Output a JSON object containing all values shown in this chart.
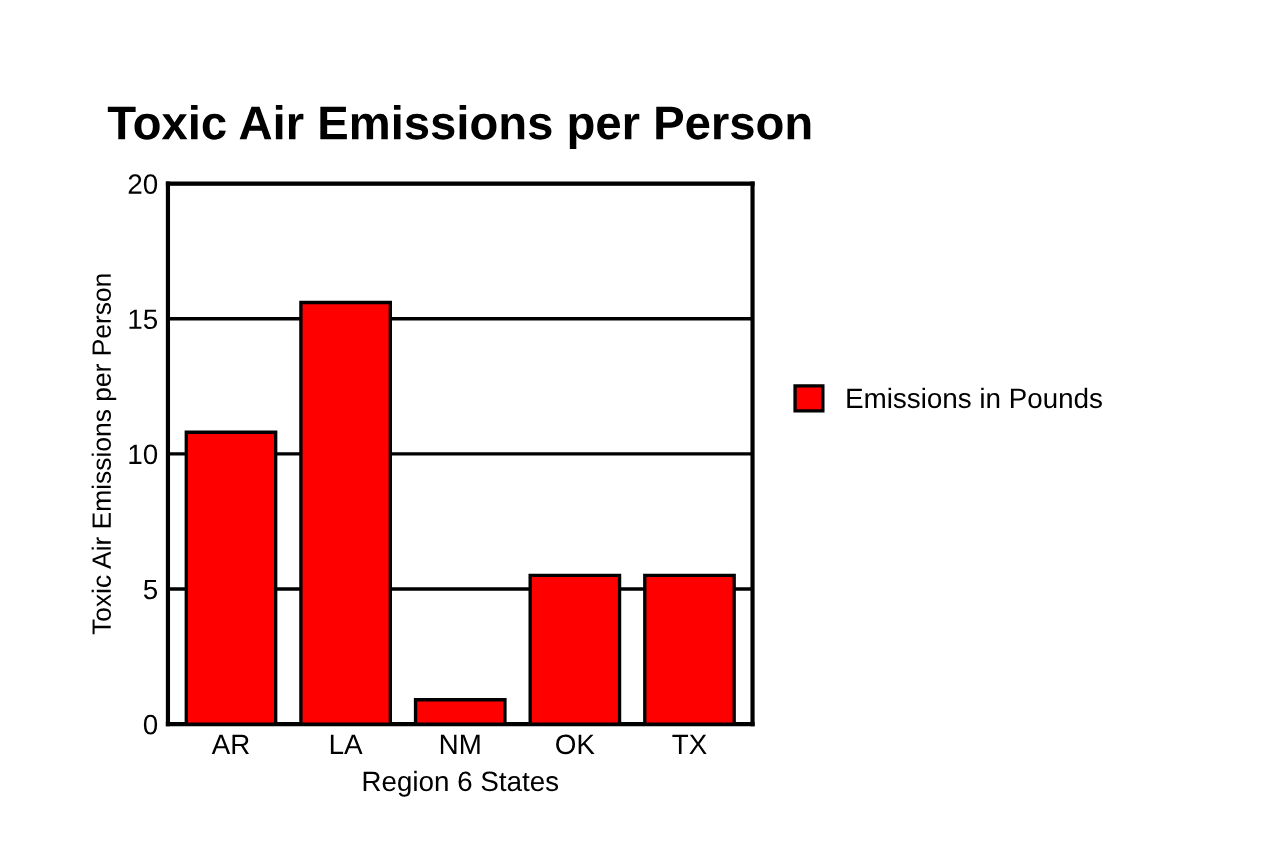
{
  "chart_data": {
    "type": "bar",
    "title": "Toxic Air Emissions per Person",
    "xlabel": "Region 6 States",
    "ylabel": "Toxic Air Emissions per Person",
    "categories": [
      "AR",
      "LA",
      "NM",
      "OK",
      "TX"
    ],
    "series": [
      {
        "name": "Emissions in Pounds",
        "color": "#ff0000",
        "values": [
          10.8,
          15.6,
          0.9,
          5.5,
          5.5
        ]
      }
    ],
    "ylim": [
      0,
      20
    ],
    "yticks": [
      0,
      5,
      10,
      15,
      20
    ],
    "grid": "y",
    "legend": "right"
  }
}
